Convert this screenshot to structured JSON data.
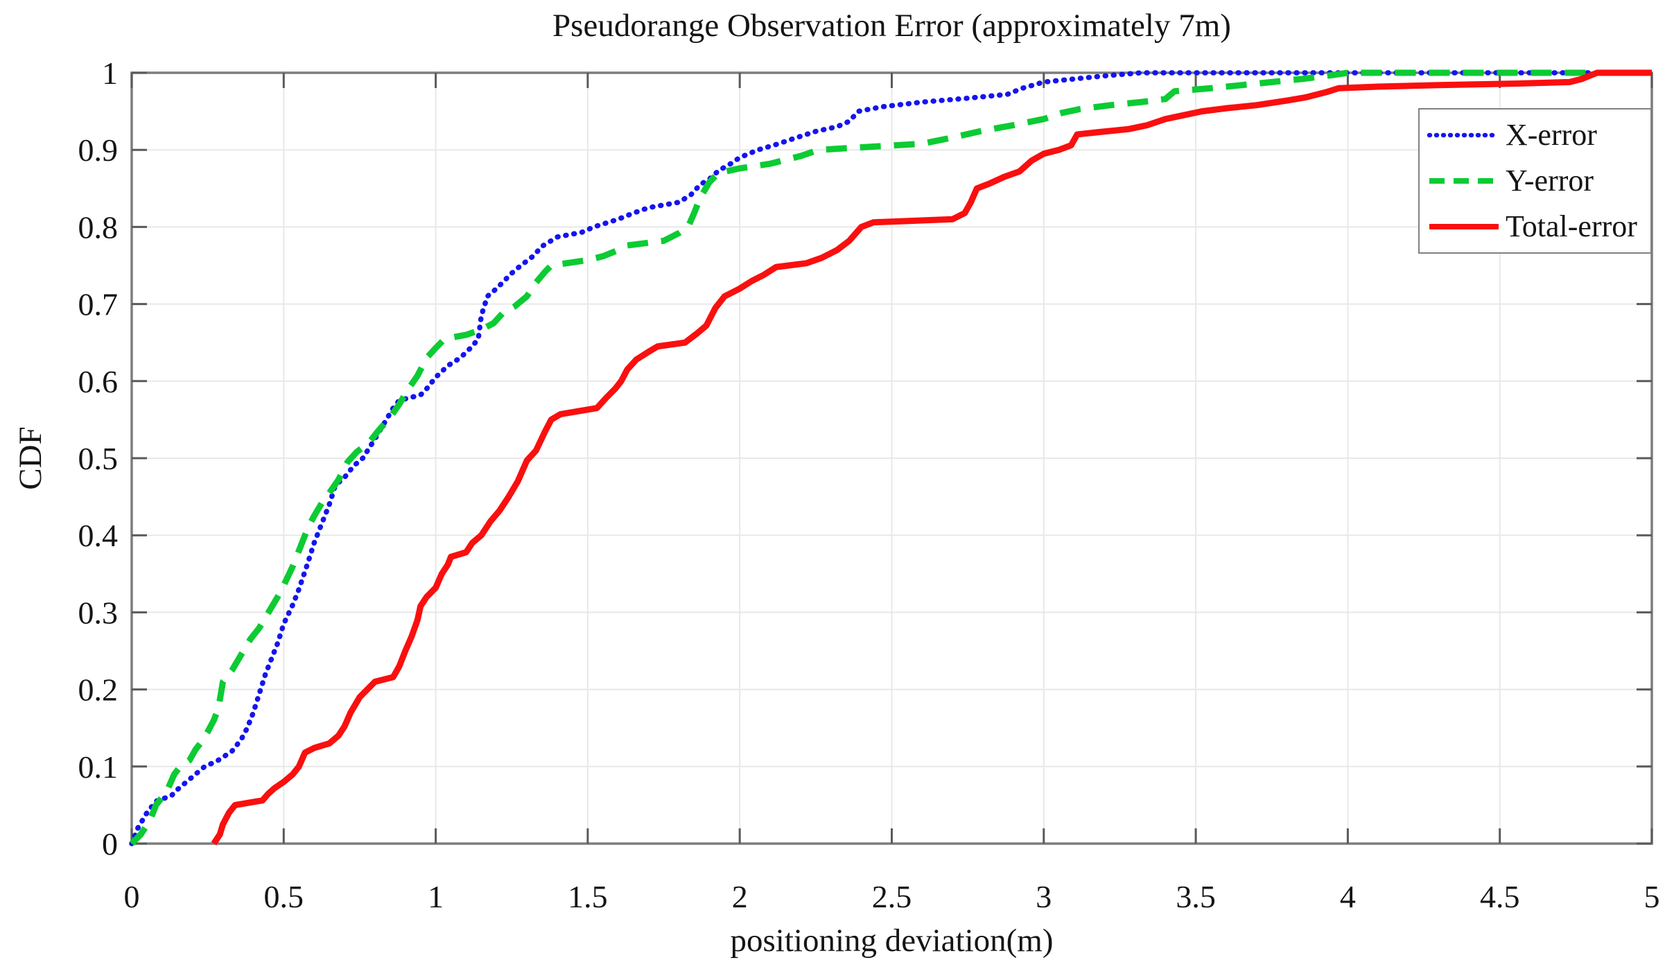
{
  "figure": {
    "background": "#ffffff",
    "box_color": "#7d7d7d",
    "grid_color": "#e8e8e8",
    "tick_color": "#5a5a5a",
    "text_color": "#151515"
  },
  "chart_data": {
    "type": "line",
    "title": "Pseudorange Observation Error (approximately 7m)",
    "xlabel": "positioning deviation(m)",
    "ylabel": "CDF",
    "xlim": [
      0,
      5
    ],
    "ylim": [
      0,
      1
    ],
    "grid": true,
    "legend_position": "upper-right-inside",
    "x_ticks": [
      0,
      0.5,
      1,
      1.5,
      2,
      2.5,
      3,
      3.5,
      4,
      4.5,
      5
    ],
    "x_tick_labels": [
      "0",
      "0.5",
      "1",
      "1.5",
      "2",
      "2.5",
      "3",
      "3.5",
      "4",
      "4.5",
      "5"
    ],
    "y_ticks": [
      0,
      0.1,
      0.2,
      0.3,
      0.4,
      0.5,
      0.6,
      0.7,
      0.8,
      0.9,
      1
    ],
    "y_tick_labels": [
      "0",
      "0.1",
      "0.2",
      "0.3",
      "0.4",
      "0.5",
      "0.6",
      "0.7",
      "0.8",
      "0.9",
      "1"
    ],
    "series": [
      {
        "name": "X-error",
        "color": "#1414f0",
        "style": "dotted",
        "points": [
          [
            0,
            0
          ],
          [
            0.02,
            0.02
          ],
          [
            0.05,
            0.04
          ],
          [
            0.08,
            0.055
          ],
          [
            0.13,
            0.062
          ],
          [
            0.15,
            0.07
          ],
          [
            0.18,
            0.08
          ],
          [
            0.21,
            0.09
          ],
          [
            0.24,
            0.1
          ],
          [
            0.28,
            0.107
          ],
          [
            0.3,
            0.112
          ],
          [
            0.33,
            0.12
          ],
          [
            0.36,
            0.135
          ],
          [
            0.38,
            0.15
          ],
          [
            0.4,
            0.17
          ],
          [
            0.42,
            0.195
          ],
          [
            0.44,
            0.22
          ],
          [
            0.46,
            0.24
          ],
          [
            0.48,
            0.26
          ],
          [
            0.5,
            0.285
          ],
          [
            0.53,
            0.31
          ],
          [
            0.55,
            0.33
          ],
          [
            0.58,
            0.365
          ],
          [
            0.6,
            0.39
          ],
          [
            0.63,
            0.42
          ],
          [
            0.65,
            0.44
          ],
          [
            0.67,
            0.465
          ],
          [
            0.7,
            0.475
          ],
          [
            0.73,
            0.49
          ],
          [
            0.76,
            0.5
          ],
          [
            0.8,
            0.525
          ],
          [
            0.83,
            0.545
          ],
          [
            0.86,
            0.565
          ],
          [
            0.88,
            0.575
          ],
          [
            0.95,
            0.582
          ],
          [
            0.97,
            0.59
          ],
          [
            1.0,
            0.605
          ],
          [
            1.04,
            0.62
          ],
          [
            1.08,
            0.63
          ],
          [
            1.12,
            0.645
          ],
          [
            1.14,
            0.655
          ],
          [
            1.15,
            0.685
          ],
          [
            1.17,
            0.71
          ],
          [
            1.2,
            0.72
          ],
          [
            1.25,
            0.74
          ],
          [
            1.28,
            0.75
          ],
          [
            1.32,
            0.762
          ],
          [
            1.35,
            0.775
          ],
          [
            1.4,
            0.787
          ],
          [
            1.48,
            0.793
          ],
          [
            1.52,
            0.8
          ],
          [
            1.6,
            0.81
          ],
          [
            1.65,
            0.818
          ],
          [
            1.7,
            0.825
          ],
          [
            1.8,
            0.832
          ],
          [
            1.84,
            0.842
          ],
          [
            1.87,
            0.855
          ],
          [
            1.9,
            0.862
          ],
          [
            1.93,
            0.873
          ],
          [
            1.97,
            0.882
          ],
          [
            2.0,
            0.89
          ],
          [
            2.06,
            0.9
          ],
          [
            2.12,
            0.907
          ],
          [
            2.18,
            0.915
          ],
          [
            2.25,
            0.924
          ],
          [
            2.32,
            0.93
          ],
          [
            2.36,
            0.937
          ],
          [
            2.39,
            0.95
          ],
          [
            2.47,
            0.956
          ],
          [
            2.6,
            0.962
          ],
          [
            2.75,
            0.967
          ],
          [
            2.88,
            0.972
          ],
          [
            2.93,
            0.98
          ],
          [
            3.0,
            0.988
          ],
          [
            3.1,
            0.992
          ],
          [
            3.2,
            0.996
          ],
          [
            3.32,
            1
          ],
          [
            5,
            1
          ]
        ]
      },
      {
        "name": "Y-error",
        "color": "#0ccb33",
        "style": "dashed",
        "points": [
          [
            0,
            0
          ],
          [
            0.03,
            0.012
          ],
          [
            0.06,
            0.03
          ],
          [
            0.08,
            0.05
          ],
          [
            0.1,
            0.06
          ],
          [
            0.12,
            0.072
          ],
          [
            0.14,
            0.09
          ],
          [
            0.16,
            0.1
          ],
          [
            0.19,
            0.108
          ],
          [
            0.21,
            0.122
          ],
          [
            0.23,
            0.132
          ],
          [
            0.25,
            0.145
          ],
          [
            0.27,
            0.16
          ],
          [
            0.285,
            0.175
          ],
          [
            0.3,
            0.21
          ],
          [
            0.33,
            0.225
          ],
          [
            0.36,
            0.245
          ],
          [
            0.39,
            0.265
          ],
          [
            0.42,
            0.28
          ],
          [
            0.45,
            0.3
          ],
          [
            0.48,
            0.32
          ],
          [
            0.5,
            0.335
          ],
          [
            0.53,
            0.36
          ],
          [
            0.55,
            0.38
          ],
          [
            0.58,
            0.41
          ],
          [
            0.6,
            0.425
          ],
          [
            0.63,
            0.445
          ],
          [
            0.65,
            0.455
          ],
          [
            0.68,
            0.472
          ],
          [
            0.71,
            0.495
          ],
          [
            0.74,
            0.508
          ],
          [
            0.78,
            0.52
          ],
          [
            0.81,
            0.535
          ],
          [
            0.85,
            0.553
          ],
          [
            0.88,
            0.57
          ],
          [
            0.91,
            0.59
          ],
          [
            0.94,
            0.607
          ],
          [
            0.97,
            0.63
          ],
          [
            1.0,
            0.643
          ],
          [
            1.03,
            0.655
          ],
          [
            1.1,
            0.66
          ],
          [
            1.15,
            0.667
          ],
          [
            1.19,
            0.675
          ],
          [
            1.22,
            0.688
          ],
          [
            1.26,
            0.697
          ],
          [
            1.3,
            0.71
          ],
          [
            1.33,
            0.728
          ],
          [
            1.36,
            0.742
          ],
          [
            1.38,
            0.75
          ],
          [
            1.5,
            0.757
          ],
          [
            1.55,
            0.762
          ],
          [
            1.6,
            0.77
          ],
          [
            1.63,
            0.776
          ],
          [
            1.75,
            0.782
          ],
          [
            1.8,
            0.792
          ],
          [
            1.83,
            0.8
          ],
          [
            1.85,
            0.818
          ],
          [
            1.87,
            0.838
          ],
          [
            1.9,
            0.858
          ],
          [
            1.93,
            0.87
          ],
          [
            2.0,
            0.876
          ],
          [
            2.1,
            0.882
          ],
          [
            2.2,
            0.892
          ],
          [
            2.26,
            0.9
          ],
          [
            2.6,
            0.908
          ],
          [
            2.7,
            0.916
          ],
          [
            2.8,
            0.925
          ],
          [
            2.9,
            0.932
          ],
          [
            3.0,
            0.94
          ],
          [
            3.06,
            0.948
          ],
          [
            3.12,
            0.953
          ],
          [
            3.22,
            0.958
          ],
          [
            3.32,
            0.962
          ],
          [
            3.4,
            0.966
          ],
          [
            3.43,
            0.976
          ],
          [
            3.55,
            0.98
          ],
          [
            3.65,
            0.984
          ],
          [
            3.75,
            0.988
          ],
          [
            3.85,
            0.992
          ],
          [
            3.95,
            0.997
          ],
          [
            4.0,
            1
          ],
          [
            5,
            1
          ]
        ]
      },
      {
        "name": "Total-error",
        "color": "#fa0f0f",
        "style": "solid",
        "points": [
          [
            0.27,
            0
          ],
          [
            0.29,
            0.012
          ],
          [
            0.3,
            0.025
          ],
          [
            0.32,
            0.04
          ],
          [
            0.34,
            0.05
          ],
          [
            0.43,
            0.056
          ],
          [
            0.45,
            0.065
          ],
          [
            0.47,
            0.072
          ],
          [
            0.5,
            0.08
          ],
          [
            0.53,
            0.09
          ],
          [
            0.55,
            0.1
          ],
          [
            0.57,
            0.118
          ],
          [
            0.6,
            0.124
          ],
          [
            0.65,
            0.13
          ],
          [
            0.68,
            0.14
          ],
          [
            0.7,
            0.152
          ],
          [
            0.72,
            0.17
          ],
          [
            0.75,
            0.19
          ],
          [
            0.78,
            0.202
          ],
          [
            0.8,
            0.21
          ],
          [
            0.86,
            0.216
          ],
          [
            0.88,
            0.23
          ],
          [
            0.9,
            0.25
          ],
          [
            0.92,
            0.268
          ],
          [
            0.94,
            0.29
          ],
          [
            0.95,
            0.308
          ],
          [
            0.97,
            0.32
          ],
          [
            1.0,
            0.332
          ],
          [
            1.02,
            0.35
          ],
          [
            1.04,
            0.362
          ],
          [
            1.05,
            0.372
          ],
          [
            1.1,
            0.378
          ],
          [
            1.12,
            0.39
          ],
          [
            1.15,
            0.4
          ],
          [
            1.18,
            0.418
          ],
          [
            1.21,
            0.432
          ],
          [
            1.24,
            0.45
          ],
          [
            1.27,
            0.47
          ],
          [
            1.3,
            0.497
          ],
          [
            1.33,
            0.51
          ],
          [
            1.36,
            0.535
          ],
          [
            1.38,
            0.55
          ],
          [
            1.41,
            0.557
          ],
          [
            1.53,
            0.565
          ],
          [
            1.56,
            0.578
          ],
          [
            1.59,
            0.59
          ],
          [
            1.61,
            0.6
          ],
          [
            1.63,
            0.615
          ],
          [
            1.66,
            0.628
          ],
          [
            1.7,
            0.638
          ],
          [
            1.73,
            0.645
          ],
          [
            1.82,
            0.65
          ],
          [
            1.86,
            0.662
          ],
          [
            1.89,
            0.672
          ],
          [
            1.92,
            0.695
          ],
          [
            1.95,
            0.71
          ],
          [
            2.0,
            0.72
          ],
          [
            2.04,
            0.73
          ],
          [
            2.08,
            0.738
          ],
          [
            2.12,
            0.748
          ],
          [
            2.22,
            0.753
          ],
          [
            2.27,
            0.76
          ],
          [
            2.32,
            0.77
          ],
          [
            2.36,
            0.782
          ],
          [
            2.4,
            0.8
          ],
          [
            2.44,
            0.806
          ],
          [
            2.7,
            0.81
          ],
          [
            2.74,
            0.818
          ],
          [
            2.76,
            0.832
          ],
          [
            2.78,
            0.85
          ],
          [
            2.82,
            0.856
          ],
          [
            2.87,
            0.865
          ],
          [
            2.92,
            0.872
          ],
          [
            2.96,
            0.886
          ],
          [
            3.0,
            0.895
          ],
          [
            3.05,
            0.9
          ],
          [
            3.09,
            0.906
          ],
          [
            3.11,
            0.92
          ],
          [
            3.18,
            0.923
          ],
          [
            3.28,
            0.927
          ],
          [
            3.34,
            0.932
          ],
          [
            3.4,
            0.94
          ],
          [
            3.46,
            0.945
          ],
          [
            3.52,
            0.95
          ],
          [
            3.6,
            0.954
          ],
          [
            3.7,
            0.958
          ],
          [
            3.8,
            0.964
          ],
          [
            3.86,
            0.968
          ],
          [
            3.93,
            0.975
          ],
          [
            3.97,
            0.98
          ],
          [
            4.1,
            0.982
          ],
          [
            4.3,
            0.984
          ],
          [
            4.55,
            0.986
          ],
          [
            4.73,
            0.988
          ],
          [
            4.77,
            0.992
          ],
          [
            4.82,
            1
          ],
          [
            5,
            1
          ]
        ]
      }
    ]
  }
}
